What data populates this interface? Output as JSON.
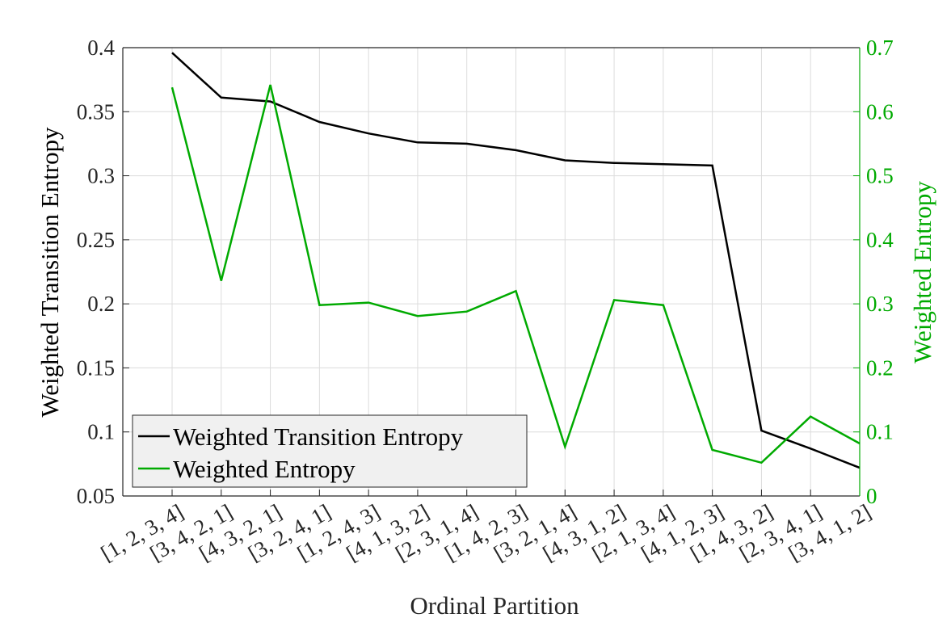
{
  "chart_data": {
    "type": "line",
    "xlabel": "Ordinal Partition",
    "ylabel_left": "Weighted Transition Entropy",
    "ylabel_right": "Weighted Entropy",
    "categories": [
      "[1, 2, 3, 4]",
      "[3, 4, 2, 1]",
      "[4, 3, 2, 1]",
      "[3, 2, 4, 1]",
      "[1, 2, 4, 3]",
      "[4, 1, 3, 2]",
      "[2, 3, 1, 4]",
      "[1, 4, 2, 3]",
      "[3, 2, 1, 4]",
      "[4, 3, 1, 2]",
      "[2, 1, 3, 4]",
      "[4, 1, 2, 3]",
      "[1, 4, 3, 2]",
      "[2, 3, 4, 1]",
      "[3, 4, 1, 2]"
    ],
    "ylim_left": [
      0.05,
      0.4
    ],
    "yticks_left": [
      "0.05",
      "0.1",
      "0.15",
      "0.2",
      "0.25",
      "0.3",
      "0.35",
      "0.4"
    ],
    "ylim_right": [
      0,
      0.7
    ],
    "yticks_right": [
      "0",
      "0.1",
      "0.2",
      "0.3",
      "0.4",
      "0.5",
      "0.6",
      "0.7"
    ],
    "grid": true,
    "legend_position": "bottom-left",
    "series": [
      {
        "name": "Weighted Transition Entropy",
        "axis": "left",
        "color": "#000000",
        "values": [
          0.396,
          0.361,
          0.358,
          0.342,
          0.333,
          0.326,
          0.325,
          0.32,
          0.312,
          0.31,
          0.309,
          0.308,
          0.101,
          0.087,
          0.072
        ]
      },
      {
        "name": "Weighted Entropy",
        "axis": "right",
        "color": "#00aa00",
        "values": [
          0.638,
          0.336,
          0.642,
          0.298,
          0.302,
          0.281,
          0.288,
          0.32,
          0.077,
          0.306,
          0.298,
          0.072,
          0.052,
          0.124,
          0.082
        ]
      }
    ]
  }
}
